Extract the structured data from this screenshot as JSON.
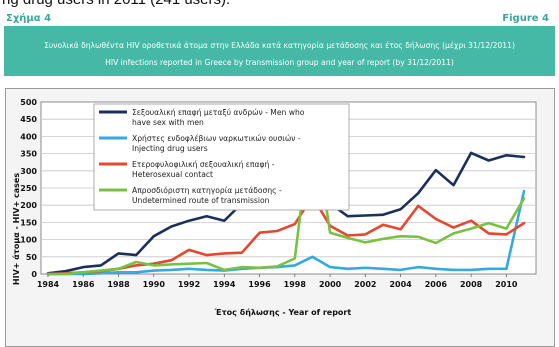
{
  "top_text": "ng drug users in 2011 (241 users).",
  "figure_label_el": "Σχήμα 4",
  "figure_label_en": "Figure 4",
  "banner": {
    "title_el": "Συνολικά δηλωθέντα HIV οροθετικά άτομα στην Ελλάδα κατά κατηγορία μετάδοσης και έτος δήλωσης (μέχρι 31/12/2011)",
    "title_en": "HIV infections reported in Greece by transmission group and year of report (by 31/12/2011)"
  },
  "colors": {
    "banner_bg": "#45b8a6",
    "msm": "#1b2f5e",
    "idu": "#35a9e0",
    "hetero": "#e5472f",
    "undetermined": "#79c143"
  },
  "chart_data": {
    "type": "line",
    "xlabel": "Έτος δήλωσης - Year of report",
    "ylabel": "HIV+ άτομα - HIV+ cases",
    "ylim": [
      0,
      500
    ],
    "yticks": [
      0,
      50,
      100,
      150,
      200,
      250,
      300,
      350,
      400,
      450,
      500
    ],
    "xticks": [
      1984,
      1986,
      1988,
      1990,
      1992,
      1994,
      1996,
      1998,
      2000,
      2002,
      2004,
      2006,
      2008,
      2010
    ],
    "grid": "horizontal",
    "legend_position": "top-left",
    "x": [
      1984,
      1985,
      1986,
      1987,
      1988,
      1989,
      1990,
      1991,
      1992,
      1993,
      1994,
      1995,
      1996,
      1997,
      1998,
      1999,
      2000,
      2001,
      2002,
      2003,
      2004,
      2005,
      2006,
      2007,
      2008,
      2009,
      2010,
      2011
    ],
    "series": [
      {
        "name": "Σεξουαλική επαφή μεταξύ ανδρών - Men who have sex with men",
        "legend_lines": [
          "Σεξουαλική επαφή μεταξύ ανδρών - Men who",
          "have sex with men"
        ],
        "color_key": "msm",
        "values": [
          2,
          8,
          20,
          25,
          60,
          55,
          110,
          138,
          155,
          168,
          155,
          205,
          265,
          325,
          345,
          410,
          205,
          168,
          170,
          172,
          188,
          235,
          302,
          258,
          352,
          330,
          345,
          340
        ]
      },
      {
        "name": "Χρήστες ενδοφλέβιων ναρκωτικών ουσιών - Injecting drug users",
        "legend_lines": [
          "Χρήστες ενδοφλέβιων ναρκωτικών ουσιών -",
          "Injecting drug users"
        ],
        "color_key": "idu",
        "values": [
          0,
          0,
          0,
          2,
          5,
          5,
          10,
          12,
          15,
          12,
          10,
          15,
          18,
          20,
          25,
          50,
          20,
          15,
          18,
          15,
          12,
          20,
          15,
          12,
          12,
          15,
          15,
          241
        ]
      },
      {
        "name": "Ετεροφυλοφιλική σεξουαλική επαφή - Heterosexual contact",
        "legend_lines": [
          "Ετεροφυλοφιλική σεξουαλική επαφή -",
          "Heterosexual contact"
        ],
        "color_key": "hetero",
        "values": [
          0,
          2,
          5,
          8,
          15,
          25,
          30,
          40,
          70,
          55,
          60,
          62,
          120,
          125,
          145,
          225,
          140,
          112,
          115,
          143,
          130,
          198,
          160,
          135,
          155,
          118,
          115,
          148
        ]
      },
      {
        "name": "Απροσδιόριστη κατηγορία μετάδοσης - Undetermined route of transmission",
        "legend_lines": [
          "Απροσδιόριστη κατηγορία μετάδοσης -",
          "Undetermined route of transmission"
        ],
        "color_key": "undetermined",
        "values": [
          0,
          0,
          5,
          10,
          15,
          35,
          25,
          28,
          30,
          32,
          12,
          20,
          18,
          22,
          45,
          460,
          120,
          105,
          92,
          102,
          110,
          108,
          90,
          118,
          132,
          148,
          132,
          220
        ]
      }
    ]
  }
}
